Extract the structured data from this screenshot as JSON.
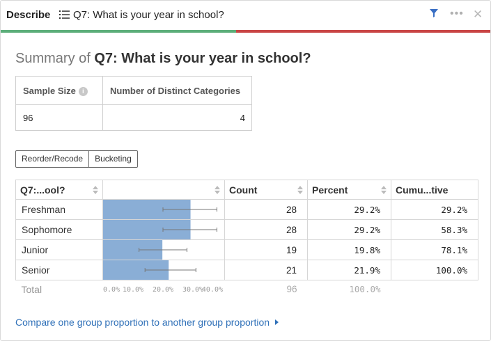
{
  "header": {
    "title": "Describe",
    "question": "Q7: What is your year in school?",
    "icons": {
      "list": "list-icon",
      "filter": "filter-icon",
      "more": "more-icon",
      "close": "close-icon"
    },
    "filter_color": "#3a6fc4"
  },
  "progress": {
    "green_fraction": 0.48,
    "green": "#5cae7a",
    "red": "#c94545"
  },
  "summary": {
    "prefix": "Summary of",
    "question": "Q7: What is your year in school?"
  },
  "stats": {
    "sample_size_label": "Sample Size",
    "distinct_label": "Number of Distinct Categories",
    "sample_size": "96",
    "distinct": "4"
  },
  "buttons": {
    "reorder": "Reorder/Recode",
    "bucketing": "Bucketing"
  },
  "frequency_table": {
    "headers": {
      "category": "Q7:...ool?",
      "bar": "",
      "count": "Count",
      "percent": "Percent",
      "cumulative": "Cumu...tive"
    },
    "rows": [
      {
        "label": "Freshman",
        "count": "28",
        "percent": "29.2%",
        "cumulative": "29.2%",
        "proportion": 0.292,
        "ci_low": 0.2,
        "ci_high": 0.38
      },
      {
        "label": "Sophomore",
        "count": "28",
        "percent": "29.2%",
        "cumulative": "58.3%",
        "proportion": 0.292,
        "ci_low": 0.2,
        "ci_high": 0.38
      },
      {
        "label": "Junior",
        "count": "19",
        "percent": "19.8%",
        "cumulative": "78.1%",
        "proportion": 0.198,
        "ci_low": 0.12,
        "ci_high": 0.28
      },
      {
        "label": "Senior",
        "count": "21",
        "percent": "21.9%",
        "cumulative": "100.0%",
        "proportion": 0.219,
        "ci_low": 0.14,
        "ci_high": 0.31
      }
    ],
    "totals": {
      "label": "Total",
      "count": "96",
      "percent": "100.0%"
    },
    "axis_ticks": [
      "0.0%",
      "10.0%",
      "20.0%",
      "30.0%",
      "40.0%"
    ],
    "axis_max": 0.4,
    "bar_color": "#8aaed6"
  },
  "compare_link": "Compare one group proportion to another group proportion"
}
